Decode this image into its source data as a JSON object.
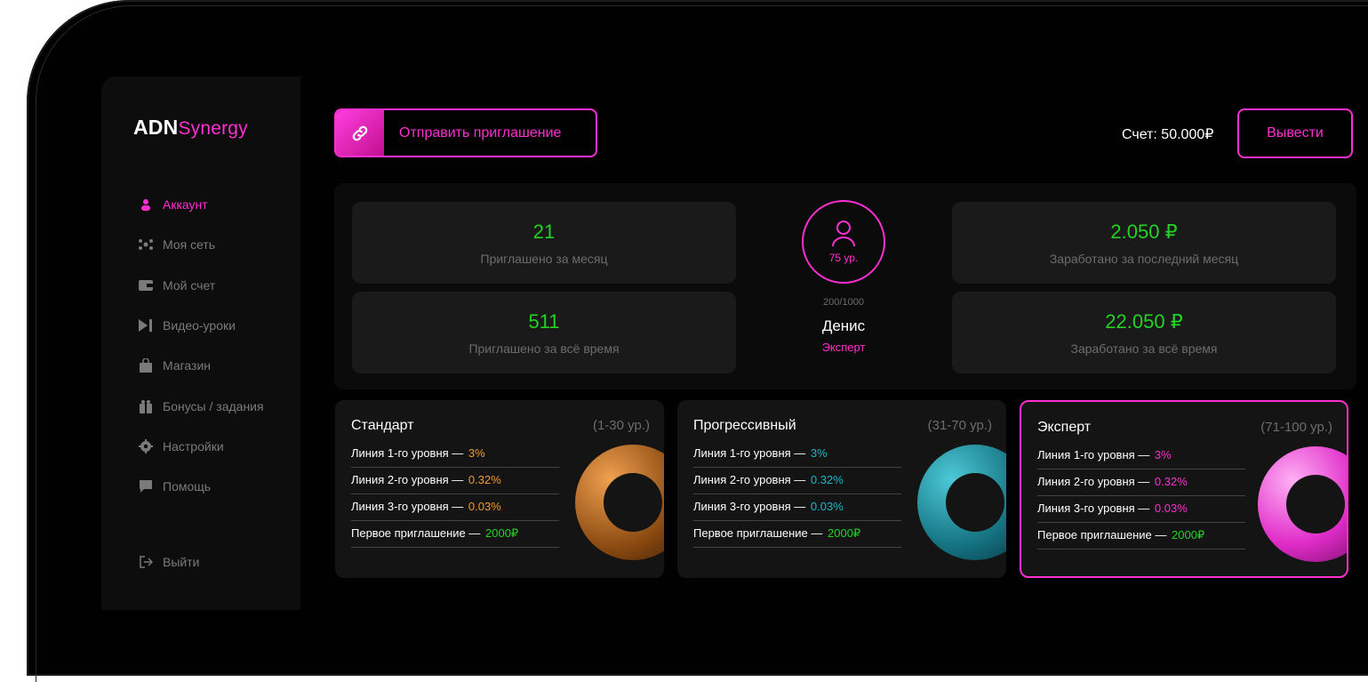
{
  "brand": {
    "part1": "ADN",
    "part2": "Synergy"
  },
  "colors": {
    "accent": "#ff2fd0",
    "positive": "#22d322",
    "orange": "#f29a2e",
    "teal": "#20b6c8"
  },
  "nav": {
    "items": [
      {
        "label": "Аккаунт",
        "icon": "user-icon"
      },
      {
        "label": "Моя сеть",
        "icon": "network-icon"
      },
      {
        "label": "Мой счет",
        "icon": "wallet-icon"
      },
      {
        "label": "Видео-уроки",
        "icon": "video-icon"
      },
      {
        "label": "Магазин",
        "icon": "bag-icon"
      },
      {
        "label": "Бонусы / задания",
        "icon": "gift-icon"
      },
      {
        "label": "Настройки",
        "icon": "gear-icon"
      },
      {
        "label": "Помощь",
        "icon": "chat-icon"
      }
    ],
    "logout": "Выйти"
  },
  "header": {
    "invite_label": "Отправить приглашение",
    "balance": "Счет: 50.000₽",
    "withdraw_label": "Вывести"
  },
  "stats": {
    "invited_month": {
      "value": "21",
      "label": "Приглашено за месяц"
    },
    "invited_total": {
      "value": "511",
      "label": "Приглашено за всё время"
    },
    "earned_month": {
      "value": "2.050 ₽",
      "label": "Заработано за последний месяц"
    },
    "earned_total": {
      "value": "22.050 ₽",
      "label": "Заработано за всё время"
    }
  },
  "profile": {
    "level": "75 ур.",
    "progress": "200/1000",
    "name": "Денис",
    "rank": "Эксперт"
  },
  "plans": [
    {
      "name": "Стандарт",
      "range": "(1-30 ур.)",
      "rows": [
        {
          "label": "Линия 1-го уровня — ",
          "value": "3%"
        },
        {
          "label": "Линия 2-го уровня — ",
          "value": "0.32%"
        },
        {
          "label": "Линия 3-го уровня — ",
          "value": "0.03%"
        },
        {
          "label": "Первое приглашение — ",
          "value": "2000₽"
        }
      ]
    },
    {
      "name": "Прогрессивный",
      "range": "(31-70 ур.)",
      "rows": [
        {
          "label": "Линия 1-го уровня — ",
          "value": "3%"
        },
        {
          "label": "Линия 2-го уровня — ",
          "value": "0.32%"
        },
        {
          "label": "Линия 3-го уровня — ",
          "value": "0.03%"
        },
        {
          "label": "Первое приглашение — ",
          "value": "2000₽"
        }
      ]
    },
    {
      "name": "Эксперт",
      "range": "(71-100 ур.)",
      "rows": [
        {
          "label": "Линия 1-го уровня — ",
          "value": "3%"
        },
        {
          "label": "Линия 2-го уровня — ",
          "value": "0.32%"
        },
        {
          "label": "Линия 3-го уровня — ",
          "value": "0.03%"
        },
        {
          "label": "Первое приглашение — ",
          "value": "2000₽"
        }
      ]
    }
  ]
}
